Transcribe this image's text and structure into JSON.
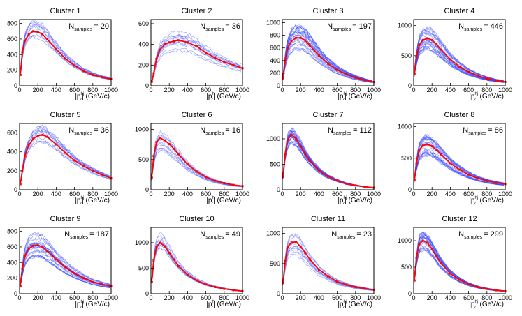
{
  "chart_data": [
    {
      "type": "line",
      "title": "Cluster 1",
      "annotation_prefix": "N",
      "annotation_sub": "samples",
      "annotation_value": "= 20",
      "xlabel": "|p",
      "xlabel_sup": "hj",
      "xlabel_sub": "z",
      "xlabel_unit": "| (GeV/c)",
      "xlim": [
        0,
        1000
      ],
      "ylim": [
        0,
        850
      ],
      "xticks": [
        0,
        200,
        400,
        600,
        800,
        1000
      ],
      "yticks": [
        0,
        200,
        400,
        600,
        800
      ],
      "peak_x": 180,
      "peak_y": 690,
      "spread": 0.2,
      "band": "narrow",
      "series": [
        {
          "color": "#ff0000"
        },
        {
          "color": "#3b4cff"
        }
      ],
      "x": [
        10,
        30,
        60,
        100,
        150,
        200,
        250,
        300,
        400,
        500,
        600,
        700,
        800,
        900,
        1000
      ],
      "y": [
        140,
        430,
        580,
        660,
        700,
        690,
        660,
        600,
        470,
        350,
        260,
        190,
        140,
        110,
        85
      ]
    },
    {
      "type": "line",
      "title": "Cluster 2",
      "annotation_prefix": "N",
      "annotation_sub": "samples",
      "annotation_value": "= 36",
      "xlabel": "|p",
      "xlabel_sup": "hj",
      "xlabel_sub": "z",
      "xlabel_unit": "| (GeV/c)",
      "xlim": [
        0,
        1000
      ],
      "ylim": [
        0,
        640
      ],
      "xticks": [
        0,
        200,
        400,
        600,
        800,
        1000
      ],
      "yticks": [
        0,
        200,
        400,
        600
      ],
      "peak_x": 300,
      "peak_y": 440,
      "spread": 0.25,
      "band": "narrow",
      "series": [
        {
          "color": "#ff0000"
        },
        {
          "color": "#3b4cff"
        }
      ],
      "x": [
        10,
        30,
        60,
        100,
        150,
        200,
        250,
        300,
        400,
        500,
        600,
        700,
        800,
        900,
        1000
      ],
      "y": [
        40,
        120,
        260,
        350,
        400,
        420,
        430,
        440,
        420,
        380,
        320,
        270,
        230,
        200,
        170
      ]
    },
    {
      "type": "line",
      "title": "Cluster 3",
      "annotation_prefix": "N",
      "annotation_sub": "samples",
      "annotation_value": "= 197",
      "xlabel": "|p",
      "xlabel_sup": "hj",
      "xlabel_sub": "z",
      "xlabel_unit": "| (GeV/c)",
      "xlim": [
        0,
        1000
      ],
      "ylim": [
        0,
        1050
      ],
      "xticks": [
        0,
        200,
        400,
        600,
        800,
        1000
      ],
      "yticks": [
        0,
        200,
        400,
        600,
        800,
        1000
      ],
      "peak_x": 200,
      "peak_y": 760,
      "spread": 0.25,
      "band": "wide",
      "series": [
        {
          "color": "#ff0000"
        },
        {
          "color": "#3b4cff"
        }
      ],
      "x": [
        10,
        30,
        60,
        100,
        150,
        200,
        250,
        300,
        400,
        500,
        600,
        700,
        800,
        900,
        1000
      ],
      "y": [
        120,
        400,
        600,
        710,
        760,
        760,
        720,
        640,
        480,
        350,
        250,
        180,
        130,
        90,
        60
      ]
    },
    {
      "type": "line",
      "title": "Cluster 4",
      "annotation_prefix": "N",
      "annotation_sub": "samples",
      "annotation_value": "= 446",
      "xlabel": "|p",
      "xlabel_sup": "hj",
      "xlabel_sub": "z",
      "xlabel_unit": "| (GeV/c)",
      "xlim": [
        0,
        1000
      ],
      "ylim": [
        0,
        1100
      ],
      "xticks": [
        0,
        200,
        400,
        600,
        800,
        1000
      ],
      "yticks": [
        0,
        500,
        1000
      ],
      "peak_x": 150,
      "peak_y": 790,
      "spread": 0.25,
      "band": "wide",
      "series": [
        {
          "color": "#ff0000"
        },
        {
          "color": "#3b4cff"
        }
      ],
      "x": [
        10,
        30,
        60,
        100,
        150,
        200,
        250,
        300,
        400,
        500,
        600,
        700,
        800,
        900,
        1000
      ],
      "y": [
        200,
        480,
        680,
        760,
        790,
        760,
        690,
        600,
        440,
        320,
        230,
        170,
        120,
        90,
        65
      ]
    },
    {
      "type": "line",
      "title": "Cluster 5",
      "annotation_prefix": "N",
      "annotation_sub": "samples",
      "annotation_value": "= 36",
      "xlabel": "|p",
      "xlabel_sup": "hj",
      "xlabel_sub": "z",
      "xlabel_unit": "| (GeV/c)",
      "xlim": [
        0,
        1000
      ],
      "ylim": [
        0,
        700
      ],
      "xticks": [
        0,
        200,
        400,
        600,
        800,
        1000
      ],
      "yticks": [
        0,
        200,
        400,
        600
      ],
      "peak_x": 250,
      "peak_y": 580,
      "spread": 0.2,
      "band": "narrow",
      "series": [
        {
          "color": "#ff0000"
        },
        {
          "color": "#3b4cff"
        }
      ],
      "x": [
        10,
        30,
        60,
        100,
        150,
        200,
        250,
        300,
        400,
        500,
        600,
        700,
        800,
        900,
        1000
      ],
      "y": [
        60,
        200,
        360,
        470,
        540,
        570,
        580,
        560,
        480,
        390,
        310,
        250,
        200,
        160,
        120
      ]
    },
    {
      "type": "line",
      "title": "Cluster 6",
      "annotation_prefix": "N",
      "annotation_sub": "samples",
      "annotation_value": "= 16",
      "xlabel": "|p",
      "xlabel_sup": "hj",
      "xlabel_sub": "z",
      "xlabel_unit": "| (GeV/c)",
      "xlim": [
        0,
        1000
      ],
      "ylim": [
        0,
        1100
      ],
      "xticks": [
        0,
        200,
        400,
        600,
        800,
        1000
      ],
      "yticks": [
        0,
        500,
        1000
      ],
      "peak_x": 100,
      "peak_y": 860,
      "spread": 0.25,
      "band": "narrow",
      "series": [
        {
          "color": "#ff0000"
        },
        {
          "color": "#3b4cff"
        }
      ],
      "x": [
        10,
        30,
        60,
        100,
        150,
        200,
        250,
        300,
        400,
        500,
        600,
        700,
        800,
        900,
        1000
      ],
      "y": [
        200,
        560,
        790,
        860,
        820,
        760,
        680,
        590,
        420,
        300,
        210,
        150,
        110,
        80,
        60
      ]
    },
    {
      "type": "line",
      "title": "Cluster 7",
      "annotation_prefix": "N",
      "annotation_sub": "samples",
      "annotation_value": "= 112",
      "xlabel": "|p",
      "xlabel_sup": "hj",
      "xlabel_sub": "z",
      "xlabel_unit": "| (GeV/c)",
      "xlim": [
        0,
        1000
      ],
      "ylim": [
        0,
        1300
      ],
      "xticks": [
        0,
        200,
        400,
        600,
        800,
        1000
      ],
      "yticks": [
        0,
        500,
        1000
      ],
      "peak_x": 100,
      "peak_y": 1080,
      "spread": 0.15,
      "band": "wide",
      "series": [
        {
          "color": "#ff0000"
        },
        {
          "color": "#3b4cff"
        }
      ],
      "x": [
        10,
        30,
        60,
        100,
        150,
        200,
        250,
        300,
        400,
        500,
        600,
        700,
        800,
        900,
        1000
      ],
      "y": [
        250,
        700,
        980,
        1080,
        1000,
        850,
        700,
        570,
        380,
        260,
        180,
        120,
        85,
        60,
        40
      ]
    },
    {
      "type": "line",
      "title": "Cluster 8",
      "annotation_prefix": "N",
      "annotation_sub": "samples",
      "annotation_value": "= 86",
      "xlabel": "|p",
      "xlabel_sup": "hj",
      "xlabel_sub": "z",
      "xlabel_unit": "| (GeV/c)",
      "xlim": [
        0,
        1000
      ],
      "ylim": [
        0,
        1050
      ],
      "xticks": [
        0,
        200,
        400,
        600,
        800,
        1000
      ],
      "yticks": [
        0,
        500,
        1000
      ],
      "peak_x": 150,
      "peak_y": 720,
      "spread": 0.25,
      "band": "wide",
      "series": [
        {
          "color": "#ff0000"
        },
        {
          "color": "#3b4cff"
        }
      ],
      "x": [
        10,
        30,
        60,
        100,
        150,
        200,
        250,
        300,
        400,
        500,
        600,
        700,
        800,
        900,
        1000
      ],
      "y": [
        150,
        420,
        620,
        700,
        720,
        690,
        630,
        560,
        420,
        320,
        240,
        180,
        140,
        110,
        90
      ]
    },
    {
      "type": "line",
      "title": "Cluster 9",
      "annotation_prefix": "N",
      "annotation_sub": "samples",
      "annotation_value": "= 187",
      "xlabel": "|p",
      "xlabel_sup": "hj",
      "xlabel_sub": "z",
      "xlabel_unit": "| (GeV/c)",
      "xlim": [
        0,
        1000
      ],
      "ylim": [
        0,
        850
      ],
      "xticks": [
        0,
        200,
        400,
        600,
        800,
        1000
      ],
      "yticks": [
        0,
        200,
        400,
        600,
        800
      ],
      "peak_x": 200,
      "peak_y": 620,
      "spread": 0.25,
      "band": "wide",
      "series": [
        {
          "color": "#ff0000"
        },
        {
          "color": "#3b4cff"
        }
      ],
      "x": [
        10,
        30,
        60,
        100,
        150,
        200,
        250,
        300,
        400,
        500,
        600,
        700,
        800,
        900,
        1000
      ],
      "y": [
        100,
        320,
        490,
        580,
        615,
        620,
        600,
        550,
        440,
        340,
        260,
        200,
        150,
        120,
        95
      ]
    },
    {
      "type": "line",
      "title": "Cluster 10",
      "annotation_prefix": "N",
      "annotation_sub": "samples",
      "annotation_value": "= 49",
      "xlabel": "|p",
      "xlabel_sup": "hj",
      "xlabel_sub": "z",
      "xlabel_unit": "| (GeV/c)",
      "xlim": [
        0,
        1000
      ],
      "ylim": [
        0,
        1300
      ],
      "xticks": [
        0,
        200,
        400,
        600,
        800,
        1000
      ],
      "yticks": [
        0,
        500,
        1000
      ],
      "peak_x": 100,
      "peak_y": 1000,
      "spread": 0.2,
      "band": "narrow",
      "series": [
        {
          "color": "#ff0000"
        },
        {
          "color": "#3b4cff"
        }
      ],
      "x": [
        10,
        30,
        60,
        100,
        150,
        200,
        250,
        300,
        400,
        500,
        600,
        700,
        800,
        900,
        1000
      ],
      "y": [
        230,
        650,
        920,
        1000,
        930,
        800,
        670,
        540,
        370,
        260,
        180,
        130,
        95,
        70,
        50
      ]
    },
    {
      "type": "line",
      "title": "Cluster 11",
      "annotation_prefix": "N",
      "annotation_sub": "samples",
      "annotation_value": "= 23",
      "xlabel": "|p",
      "xlabel_sup": "hj",
      "xlabel_sub": "z",
      "xlabel_unit": "| (GeV/c)",
      "xlim": [
        0,
        1000
      ],
      "ylim": [
        0,
        1100
      ],
      "xticks": [
        0,
        200,
        400,
        600,
        800,
        1000
      ],
      "yticks": [
        0,
        500,
        1000
      ],
      "peak_x": 130,
      "peak_y": 860,
      "spread": 0.25,
      "band": "narrow",
      "series": [
        {
          "color": "#ff0000"
        },
        {
          "color": "#3b4cff"
        }
      ],
      "x": [
        10,
        30,
        60,
        100,
        150,
        200,
        250,
        300,
        400,
        500,
        600,
        700,
        800,
        900,
        1000
      ],
      "y": [
        180,
        540,
        780,
        850,
        860,
        780,
        680,
        570,
        400,
        290,
        200,
        150,
        110,
        85,
        65
      ]
    },
    {
      "type": "line",
      "title": "Cluster 12",
      "annotation_prefix": "N",
      "annotation_sub": "samples",
      "annotation_value": "= 299",
      "xlabel": "|p",
      "xlabel_sup": "hj",
      "xlabel_sub": "z",
      "xlabel_unit": "| (GeV/c)",
      "xlim": [
        0,
        1000
      ],
      "ylim": [
        0,
        1250
      ],
      "xticks": [
        0,
        200,
        400,
        600,
        800,
        1000
      ],
      "yticks": [
        0,
        500,
        1000
      ],
      "peak_x": 120,
      "peak_y": 1000,
      "spread": 0.18,
      "band": "wide",
      "series": [
        {
          "color": "#ff0000"
        },
        {
          "color": "#3b4cff"
        }
      ],
      "x": [
        10,
        30,
        60,
        100,
        150,
        200,
        250,
        300,
        400,
        500,
        600,
        700,
        800,
        900,
        1000
      ],
      "y": [
        250,
        680,
        930,
        1000,
        960,
        840,
        700,
        570,
        380,
        260,
        180,
        125,
        90,
        65,
        48
      ]
    }
  ]
}
